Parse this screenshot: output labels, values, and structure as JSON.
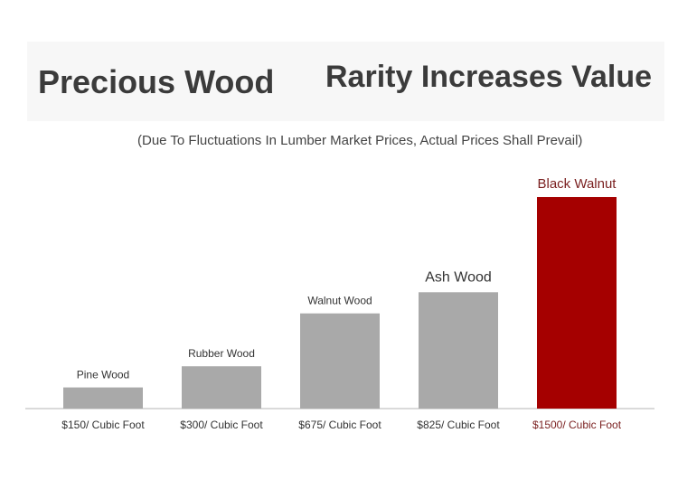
{
  "header": {
    "title_left": "Precious Wood",
    "title_right": "Rarity Increases Value",
    "subtitle": "(Due To Fluctuations In Lumber Market Prices, Actual Prices Shall Prevail)"
  },
  "colors": {
    "bar_default": "#a9a9a9",
    "bar_highlight": "#a50000",
    "highlight_text": "#7a1f1f",
    "text": "#333333",
    "axis": "#b5b5b5"
  },
  "chart_data": {
    "type": "bar",
    "categories": [
      "Pine Wood",
      "Rubber Wood",
      "Walnut Wood",
      "Ash Wood",
      "Black Walnut"
    ],
    "values": [
      150,
      300,
      675,
      825,
      1500
    ],
    "value_labels": [
      "$150/ Cubic Foot",
      "$300/ Cubic Foot",
      "$675/ Cubic Foot",
      "$825/ Cubic Foot",
      "$1500/ Cubic Foot"
    ],
    "highlight_index": 4,
    "unit": "$ / cubic foot",
    "ylim": [
      0,
      1500
    ],
    "grid": false,
    "legend": "none",
    "title": "",
    "xlabel": "",
    "ylabel": ""
  }
}
